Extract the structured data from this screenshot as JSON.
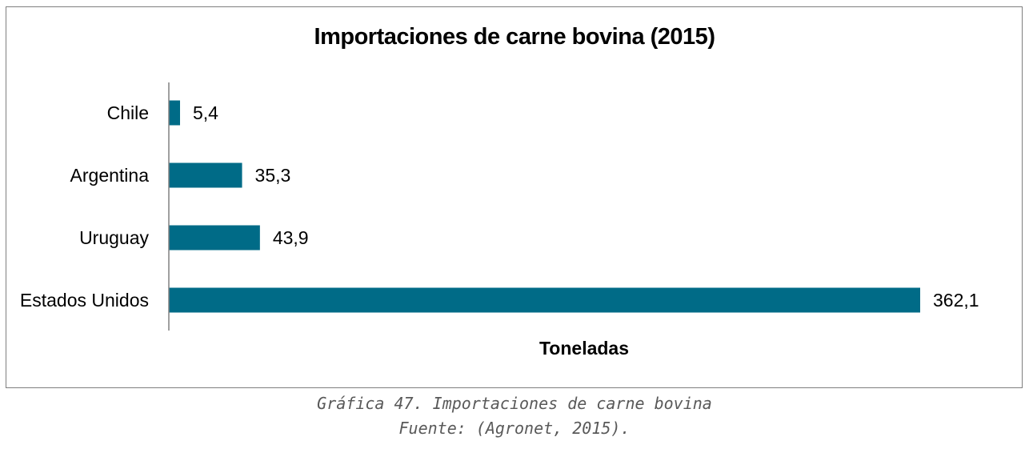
{
  "chart_data": {
    "type": "bar",
    "orientation": "horizontal",
    "title": "Importaciones de carne bovina (2015)",
    "xlabel": "Toneladas",
    "ylabel": "",
    "categories": [
      "Chile",
      "Argentina",
      "Uruguay",
      "Estados Unidos"
    ],
    "values": [
      5.4,
      35.3,
      43.9,
      362.1
    ],
    "value_labels": [
      "5,4",
      "35,3",
      "43,9",
      "362,1"
    ],
    "xlim": [
      0,
      362.1
    ],
    "grid": false,
    "legend": "none",
    "bar_color": "#006B87"
  },
  "caption": {
    "line1": "Gráfica 47. Importaciones de carne bovina",
    "line2": "Fuente: (Agronet, 2015)."
  }
}
